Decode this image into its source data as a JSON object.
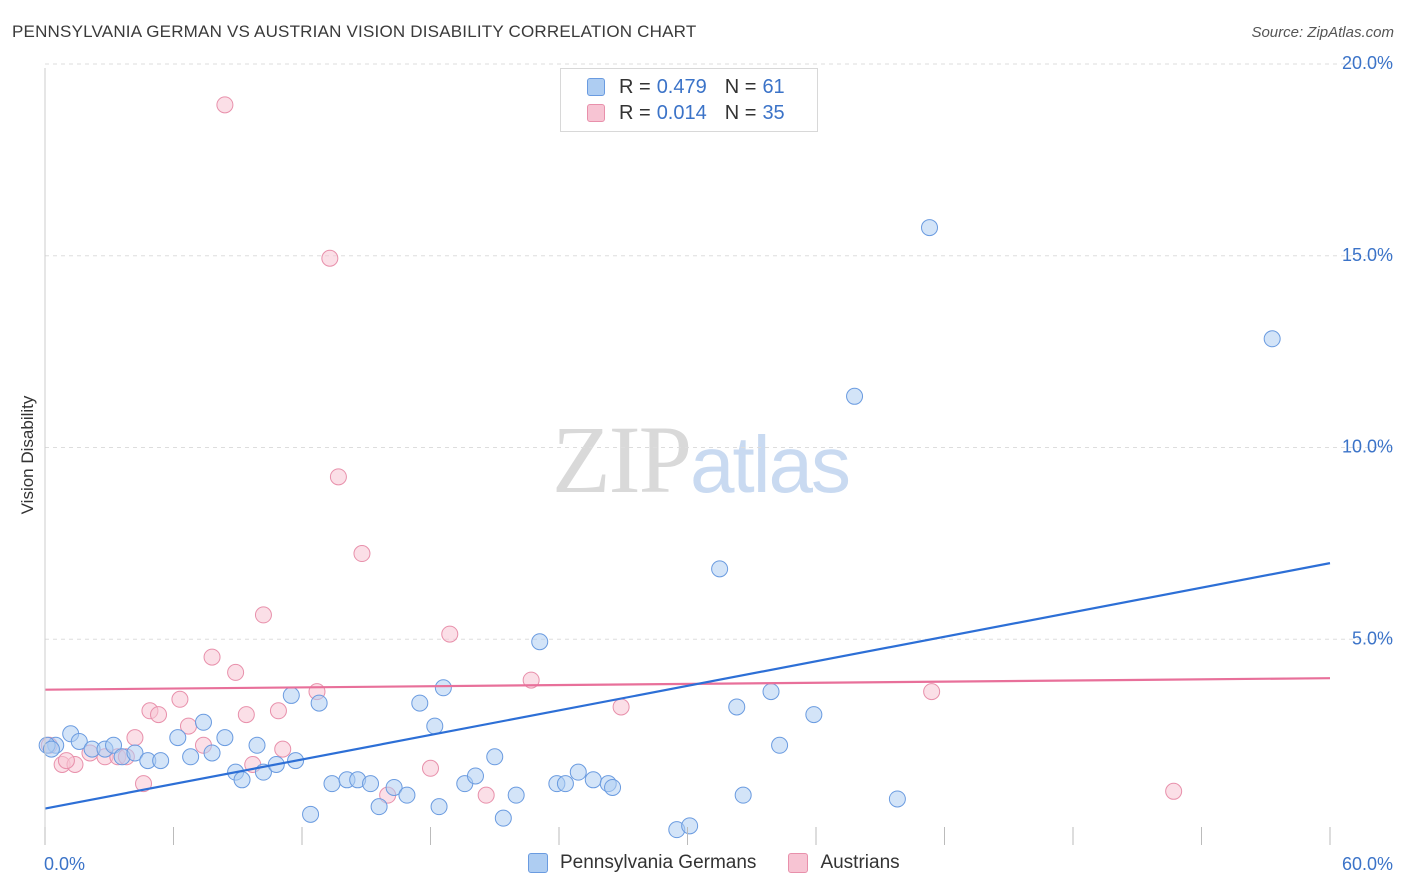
{
  "header": {
    "title": "PENNSYLVANIA GERMAN VS AUSTRIAN VISION DISABILITY CORRELATION CHART",
    "source": "Source: ZipAtlas.com"
  },
  "watermark": {
    "zip": "ZIP",
    "atlas": "atlas"
  },
  "legend_top": {
    "r_label": "R =",
    "n_label": "N =",
    "series": [
      {
        "r": "0.479",
        "n": "61"
      },
      {
        "r": "0.014",
        "n": "35"
      }
    ]
  },
  "legend_bottom": {
    "items": [
      "Pennsylvania Germans",
      "Austrians"
    ]
  },
  "colors": {
    "blue_fill": "#aecdf2",
    "blue_stroke": "#6a9be0",
    "blue_line": "#2d6fd6",
    "pink_fill": "#f7c4d3",
    "pink_stroke": "#e890ab",
    "pink_line": "#e8709a",
    "tick_text": "#3b73c8",
    "grid": "#dddddd"
  },
  "chart_data": {
    "type": "scatter",
    "title": "PENNSYLVANIA GERMAN VS AUSTRIAN VISION DISABILITY CORRELATION CHART",
    "xlabel": "",
    "ylabel": "Vision Disability",
    "xlim": [
      0,
      60
    ],
    "ylim": [
      0,
      20
    ],
    "x_tick_labels": [
      "0.0%",
      "60.0%"
    ],
    "y_ticks": [
      5,
      10,
      15,
      20
    ],
    "y_tick_labels": [
      "5.0%",
      "10.0%",
      "15.0%",
      "20.0%"
    ],
    "grid": true,
    "series": [
      {
        "name": "Pennsylvania Germans",
        "r": 0.479,
        "n": 61,
        "trend": {
          "x": [
            0,
            60
          ],
          "y": [
            0.95,
            7.35
          ]
        },
        "points": [
          [
            0.5,
            2.6
          ],
          [
            1.2,
            2.9
          ],
          [
            1.6,
            2.7
          ],
          [
            2.2,
            2.5
          ],
          [
            2.8,
            2.5
          ],
          [
            3.2,
            2.6
          ],
          [
            3.6,
            2.3
          ],
          [
            4.2,
            2.4
          ],
          [
            4.8,
            2.2
          ],
          [
            5.4,
            2.2
          ],
          [
            6.2,
            2.8
          ],
          [
            6.8,
            2.3
          ],
          [
            7.4,
            3.2
          ],
          [
            7.8,
            2.4
          ],
          [
            8.4,
            2.8
          ],
          [
            8.9,
            1.9
          ],
          [
            9.2,
            1.7
          ],
          [
            9.9,
            2.6
          ],
          [
            10.2,
            1.9
          ],
          [
            10.8,
            2.1
          ],
          [
            11.5,
            3.9
          ],
          [
            11.7,
            2.2
          ],
          [
            12.4,
            0.8
          ],
          [
            12.8,
            3.7
          ],
          [
            13.4,
            1.6
          ],
          [
            14.1,
            1.7
          ],
          [
            14.6,
            1.7
          ],
          [
            15.2,
            1.6
          ],
          [
            15.6,
            1.0
          ],
          [
            16.3,
            1.5
          ],
          [
            16.9,
            1.3
          ],
          [
            17.5,
            3.7
          ],
          [
            18.2,
            3.1
          ],
          [
            18.4,
            1.0
          ],
          [
            18.6,
            4.1
          ],
          [
            19.6,
            1.6
          ],
          [
            20.1,
            1.8
          ],
          [
            21.0,
            2.3
          ],
          [
            21.4,
            0.7
          ],
          [
            22.0,
            1.3
          ],
          [
            23.1,
            5.3
          ],
          [
            23.9,
            1.6
          ],
          [
            24.3,
            1.6
          ],
          [
            24.9,
            1.9
          ],
          [
            25.6,
            1.7
          ],
          [
            26.3,
            1.6
          ],
          [
            26.5,
            1.5
          ],
          [
            29.5,
            0.4
          ],
          [
            30.1,
            0.5
          ],
          [
            31.5,
            7.2
          ],
          [
            32.3,
            3.6
          ],
          [
            32.6,
            1.3
          ],
          [
            33.9,
            4.0
          ],
          [
            34.3,
            2.6
          ],
          [
            35.9,
            3.4
          ],
          [
            37.8,
            11.7
          ],
          [
            39.8,
            1.2
          ],
          [
            41.3,
            16.1
          ],
          [
            57.3,
            13.2
          ],
          [
            0.1,
            2.6
          ],
          [
            0.3,
            2.5
          ]
        ]
      },
      {
        "name": "Austrians",
        "r": 0.014,
        "n": 35,
        "trend": {
          "x": [
            0,
            60
          ],
          "y": [
            4.05,
            4.35
          ]
        },
        "points": [
          [
            0.2,
            2.6
          ],
          [
            0.8,
            2.1
          ],
          [
            1.4,
            2.1
          ],
          [
            2.1,
            2.4
          ],
          [
            2.8,
            2.3
          ],
          [
            3.4,
            2.3
          ],
          [
            3.8,
            2.3
          ],
          [
            4.2,
            2.8
          ],
          [
            4.6,
            1.6
          ],
          [
            4.9,
            3.5
          ],
          [
            5.3,
            3.4
          ],
          [
            6.3,
            3.8
          ],
          [
            6.7,
            3.1
          ],
          [
            7.4,
            2.6
          ],
          [
            7.8,
            4.9
          ],
          [
            8.4,
            19.3
          ],
          [
            8.9,
            4.5
          ],
          [
            9.4,
            3.4
          ],
          [
            9.7,
            2.1
          ],
          [
            10.2,
            6.0
          ],
          [
            10.9,
            3.5
          ],
          [
            11.1,
            2.5
          ],
          [
            12.7,
            4.0
          ],
          [
            13.3,
            15.3
          ],
          [
            13.7,
            9.6
          ],
          [
            14.8,
            7.6
          ],
          [
            16.0,
            1.3
          ],
          [
            18.0,
            2.0
          ],
          [
            18.9,
            5.5
          ],
          [
            20.6,
            1.3
          ],
          [
            22.7,
            4.3
          ],
          [
            26.9,
            3.6
          ],
          [
            41.4,
            4.0
          ],
          [
            52.7,
            1.4
          ],
          [
            1.0,
            2.2
          ]
        ]
      }
    ]
  }
}
